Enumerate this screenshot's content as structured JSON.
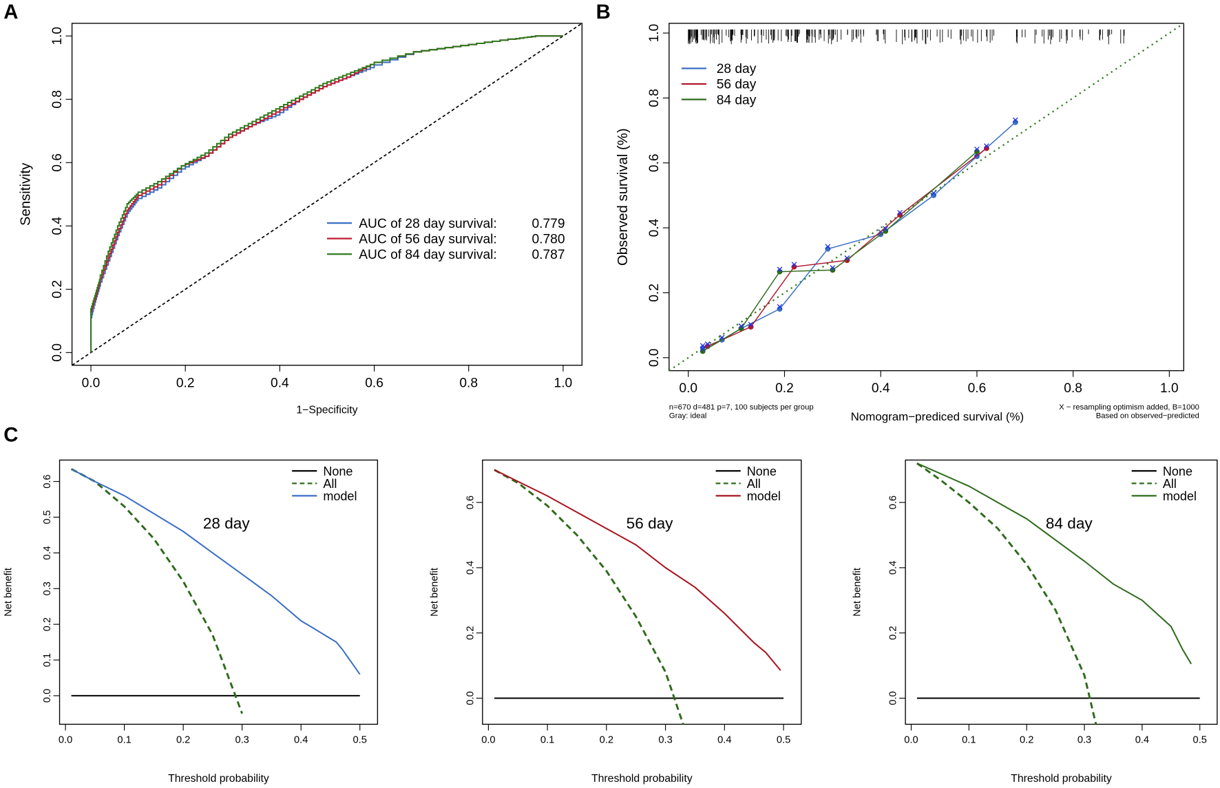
{
  "chart_data": [
    {
      "panel_label": "A",
      "type": "line",
      "xlabel": "1−Specificity",
      "ylabel": "Sensitivity",
      "xlim": [
        -0.04,
        1.04
      ],
      "ylim": [
        -0.04,
        1.04
      ],
      "xticks": [
        "0.0",
        "0.2",
        "0.4",
        "0.6",
        "0.8",
        "1.0"
      ],
      "yticks": [
        "0.0",
        "0.2",
        "0.4",
        "0.6",
        "0.8",
        "1.0"
      ],
      "legend_position": "bottom-right",
      "reference_line": "diagonal dashed",
      "series": [
        {
          "name": "AUC of 28 day survival:",
          "auc": "0.779",
          "color": "#3a6fc4",
          "x": [
            0,
            0,
            0.01,
            0.02,
            0.04,
            0.06,
            0.08,
            0.1,
            0.15,
            0.2,
            0.25,
            0.3,
            0.35,
            0.4,
            0.45,
            0.5,
            0.55,
            0.6,
            0.7,
            0.8,
            0.9,
            0.95,
            1
          ],
          "y": [
            0,
            0.1,
            0.16,
            0.21,
            0.29,
            0.37,
            0.44,
            0.48,
            0.52,
            0.58,
            0.62,
            0.68,
            0.72,
            0.75,
            0.8,
            0.84,
            0.87,
            0.9,
            0.95,
            0.97,
            0.99,
            1,
            1
          ]
        },
        {
          "name": "AUC of 56 day survival:",
          "auc": "0.780",
          "color": "#c0182f",
          "x": [
            0,
            0,
            0.01,
            0.02,
            0.04,
            0.06,
            0.08,
            0.1,
            0.15,
            0.2,
            0.25,
            0.3,
            0.35,
            0.4,
            0.45,
            0.5,
            0.55,
            0.6,
            0.7,
            0.8,
            0.9,
            0.95,
            1
          ],
          "y": [
            0,
            0.12,
            0.17,
            0.22,
            0.3,
            0.38,
            0.45,
            0.49,
            0.53,
            0.59,
            0.62,
            0.68,
            0.72,
            0.76,
            0.8,
            0.84,
            0.87,
            0.91,
            0.95,
            0.97,
            0.99,
            1,
            1
          ]
        },
        {
          "name": "AUC of 84 day survival:",
          "auc": "0.787",
          "color": "#2e7a1b",
          "x": [
            0,
            0,
            0.01,
            0.02,
            0.04,
            0.06,
            0.08,
            0.1,
            0.15,
            0.2,
            0.25,
            0.3,
            0.35,
            0.4,
            0.45,
            0.5,
            0.55,
            0.6,
            0.7,
            0.8,
            0.9,
            0.95,
            1
          ],
          "y": [
            0,
            0.13,
            0.18,
            0.23,
            0.32,
            0.4,
            0.47,
            0.5,
            0.54,
            0.59,
            0.63,
            0.69,
            0.73,
            0.77,
            0.81,
            0.85,
            0.88,
            0.91,
            0.95,
            0.97,
            0.99,
            1,
            1
          ]
        }
      ]
    },
    {
      "panel_label": "B",
      "type": "line",
      "xlabel": "Nomogram−prediced survival (%)",
      "ylabel": "Observed survival (%)",
      "xlim": [
        -0.04,
        1.03
      ],
      "ylim": [
        -0.04,
        1.03
      ],
      "xticks": [
        "0.0",
        "0.2",
        "0.4",
        "0.6",
        "0.8",
        "1.0"
      ],
      "yticks": [
        "0.0",
        "0.2",
        "0.4",
        "0.6",
        "0.8",
        "1.0"
      ],
      "legend_position": "top-left",
      "reference_line": "diagonal dotted",
      "note_left": [
        "n=670 d=481 p=7, 100 subjects per group",
        "Gray: ideal"
      ],
      "note_right": [
        "X − resampling optimism added, B=1000",
        "Based on observed−predicted"
      ],
      "series": [
        {
          "name": "28 day",
          "color": "#3a6fc4",
          "x": [
            0.03,
            0.07,
            0.11,
            0.19,
            0.29,
            0.4,
            0.51,
            0.6,
            0.68
          ],
          "y": [
            0.03,
            0.055,
            0.09,
            0.15,
            0.335,
            0.38,
            0.5,
            0.62,
            0.725
          ]
        },
        {
          "name": "56 day",
          "color": "#b0182f",
          "x": [
            0.04,
            0.13,
            0.22,
            0.33,
            0.44,
            0.62
          ],
          "y": [
            0.035,
            0.095,
            0.28,
            0.3,
            0.44,
            0.645
          ]
        },
        {
          "name": "84 day",
          "color": "#2e6a1b",
          "x": [
            0.03,
            0.11,
            0.19,
            0.3,
            0.41,
            0.6
          ],
          "y": [
            0.02,
            0.09,
            0.265,
            0.27,
            0.39,
            0.635
          ]
        }
      ]
    },
    {
      "panel_label": "C",
      "type": "line",
      "title": "28 day",
      "xlabel": "Threshold probability",
      "ylabel": "Net benefit",
      "xlim": [
        -0.01,
        0.53
      ],
      "ylim": [
        -0.08,
        0.66
      ],
      "xticks": [
        "0.0",
        "0.1",
        "0.2",
        "0.3",
        "0.4",
        "0.5"
      ],
      "yticks": [
        "0.0",
        "0.1",
        "0.2",
        "0.3",
        "0.4",
        "0.5",
        "0.6"
      ],
      "legend_position": "top-right",
      "series": [
        {
          "name": "None",
          "color": "#000000",
          "style": "solid",
          "x": [
            0.01,
            0.5
          ],
          "y": [
            0,
            0
          ]
        },
        {
          "name": "All",
          "color": "#2e6a1b",
          "style": "dashed",
          "x": [
            0.01,
            0.05,
            0.1,
            0.15,
            0.2,
            0.25,
            0.3
          ],
          "y": [
            0.635,
            0.6,
            0.53,
            0.44,
            0.32,
            0.17,
            -0.05
          ]
        },
        {
          "name": "model",
          "color": "#3a6fc4",
          "style": "solid",
          "x": [
            0.01,
            0.05,
            0.1,
            0.15,
            0.2,
            0.25,
            0.3,
            0.35,
            0.4,
            0.42,
            0.45,
            0.46,
            0.47,
            0.5
          ],
          "y": [
            0.635,
            0.6,
            0.56,
            0.51,
            0.46,
            0.4,
            0.34,
            0.28,
            0.21,
            0.19,
            0.16,
            0.15,
            0.13,
            0.06
          ]
        }
      ]
    },
    {
      "type": "line",
      "title": "56 day",
      "xlabel": "Threshold probability",
      "ylabel": "Net benefit",
      "xlim": [
        -0.01,
        0.53
      ],
      "ylim": [
        -0.08,
        0.73
      ],
      "xticks": [
        "0.0",
        "0.1",
        "0.2",
        "0.3",
        "0.4",
        "0.5"
      ],
      "yticks": [
        "0.0",
        "0.2",
        "0.4",
        "0.6"
      ],
      "legend_position": "top-right",
      "series": [
        {
          "name": "None",
          "color": "#000000",
          "style": "solid",
          "x": [
            0.01,
            0.5
          ],
          "y": [
            0,
            0
          ]
        },
        {
          "name": "All",
          "color": "#2e6a1b",
          "style": "dashed",
          "x": [
            0.01,
            0.05,
            0.1,
            0.15,
            0.2,
            0.25,
            0.3,
            0.33
          ],
          "y": [
            0.7,
            0.66,
            0.59,
            0.5,
            0.39,
            0.25,
            0.08,
            -0.08
          ]
        },
        {
          "name": "model",
          "color": "#a8141f",
          "style": "solid",
          "x": [
            0.01,
            0.1,
            0.2,
            0.25,
            0.3,
            0.35,
            0.4,
            0.45,
            0.47,
            0.495
          ],
          "y": [
            0.7,
            0.62,
            0.52,
            0.47,
            0.4,
            0.34,
            0.26,
            0.17,
            0.14,
            0.085
          ]
        }
      ]
    },
    {
      "type": "line",
      "title": "84 day",
      "xlabel": "Threshold probability",
      "ylabel": "Net benefit",
      "xlim": [
        -0.01,
        0.53
      ],
      "ylim": [
        -0.08,
        0.73
      ],
      "xticks": [
        "0.0",
        "0.1",
        "0.2",
        "0.3",
        "0.4",
        "0.5"
      ],
      "yticks": [
        "0.0",
        "0.2",
        "0.4",
        "0.6"
      ],
      "legend_position": "top-right",
      "series": [
        {
          "name": "None",
          "color": "#000000",
          "style": "solid",
          "x": [
            0.01,
            0.5
          ],
          "y": [
            0,
            0
          ]
        },
        {
          "name": "All",
          "color": "#2e6a1b",
          "style": "dashed",
          "x": [
            0.01,
            0.05,
            0.1,
            0.15,
            0.2,
            0.25,
            0.3,
            0.32
          ],
          "y": [
            0.72,
            0.67,
            0.6,
            0.52,
            0.41,
            0.27,
            0.07,
            -0.08
          ]
        },
        {
          "name": "model",
          "color": "#2e6a1b",
          "style": "solid",
          "x": [
            0.01,
            0.1,
            0.2,
            0.3,
            0.35,
            0.4,
            0.45,
            0.47,
            0.485
          ],
          "y": [
            0.72,
            0.65,
            0.55,
            0.42,
            0.35,
            0.3,
            0.22,
            0.15,
            0.105
          ]
        }
      ]
    }
  ]
}
